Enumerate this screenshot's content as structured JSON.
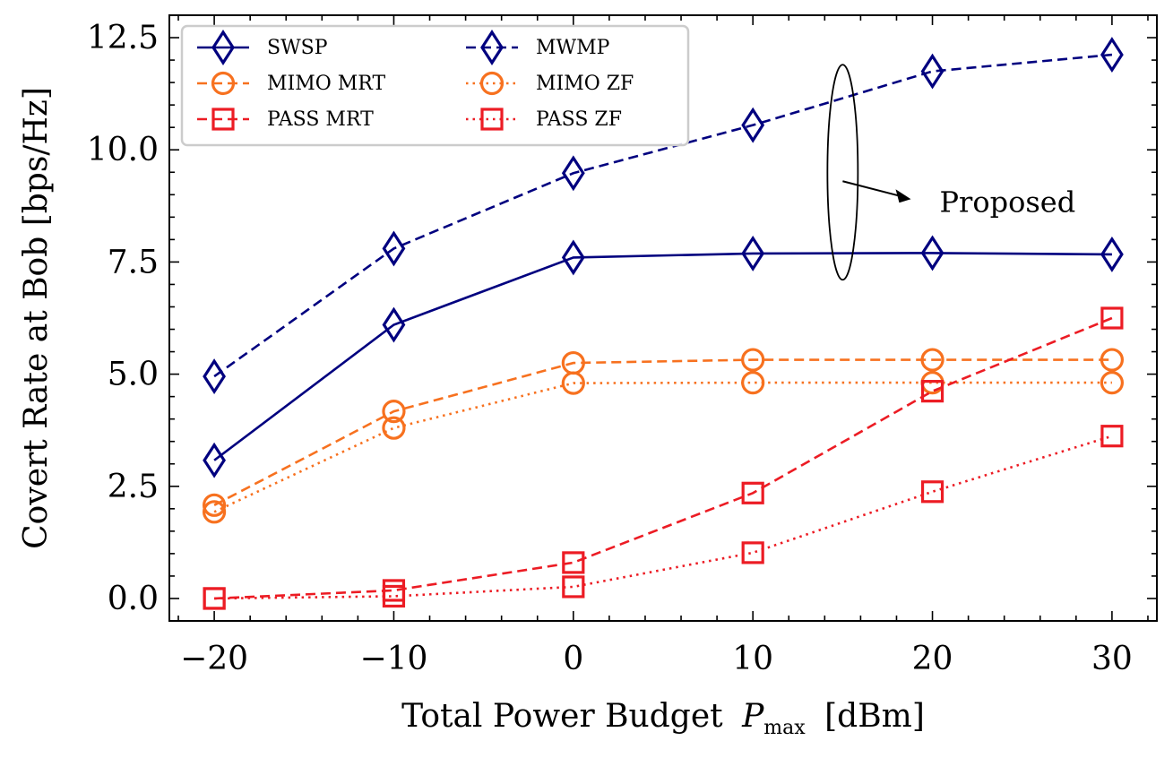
{
  "chart_data": {
    "type": "line",
    "title": "",
    "xlabel": "Total Power Budget",
    "xlabel_symbol": "P",
    "xlabel_symbol_sub": "max",
    "xlabel_unit": "[dBm]",
    "ylabel": "Covert Rate at Bob [bps/Hz]",
    "xlim": [
      -22.5,
      32.5
    ],
    "ylim": [
      -0.5,
      13.0
    ],
    "x_ticks": [
      -20,
      -10,
      0,
      10,
      20,
      30
    ],
    "x_tick_labels": [
      "−20",
      "−10",
      "0",
      "10",
      "20",
      "30"
    ],
    "y_ticks": [
      0.0,
      2.5,
      5.0,
      7.5,
      10.0,
      12.5
    ],
    "y_tick_labels": [
      "0.0",
      "2.5",
      "5.0",
      "7.5",
      "10.0",
      "12.5"
    ],
    "x": [
      -20,
      -10,
      0,
      10,
      20,
      30
    ],
    "legend_position": "upper-left",
    "series": [
      {
        "name": "SWSP",
        "color": "#00007f",
        "linestyle": "solid",
        "marker": "diamond",
        "values": [
          3.08,
          6.1,
          7.6,
          7.69,
          7.7,
          7.67
        ]
      },
      {
        "name": "MWMP",
        "color": "#00007f",
        "linestyle": "dashed",
        "marker": "diamond",
        "values": [
          4.95,
          7.8,
          9.48,
          10.55,
          11.75,
          12.12
        ]
      },
      {
        "name": "MIMO MRT",
        "color": "#f7711f",
        "linestyle": "dashed",
        "marker": "circle",
        "values": [
          2.08,
          4.17,
          5.25,
          5.32,
          5.32,
          5.32
        ]
      },
      {
        "name": "MIMO ZF",
        "color": "#f7711f",
        "linestyle": "dotted",
        "marker": "circle",
        "values": [
          1.93,
          3.8,
          4.8,
          4.81,
          4.81,
          4.81
        ]
      },
      {
        "name": "PASS MRT",
        "color": "#ec1c24",
        "linestyle": "dashed",
        "marker": "square",
        "values": [
          0.0,
          0.18,
          0.8,
          2.35,
          4.62,
          6.25
        ]
      },
      {
        "name": "PASS ZF",
        "color": "#ec1c24",
        "linestyle": "dotted",
        "marker": "square",
        "values": [
          0.0,
          0.05,
          0.26,
          1.02,
          2.38,
          3.62
        ]
      }
    ],
    "annotation": {
      "text": "Proposed",
      "ellipse_center": [
        15.0,
        9.5
      ],
      "arrow_from": [
        15.0,
        9.3
      ],
      "arrow_to": [
        18.8,
        8.9
      ]
    }
  }
}
